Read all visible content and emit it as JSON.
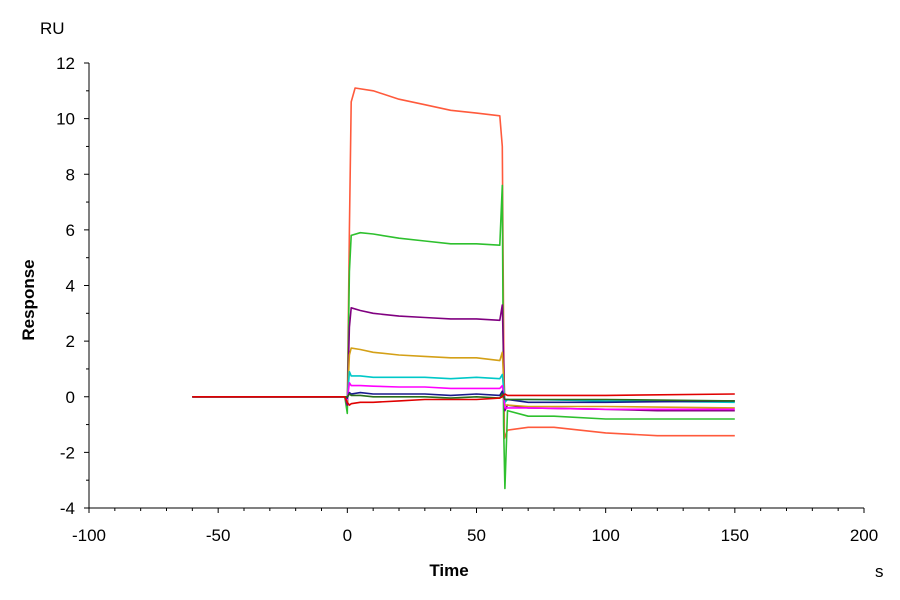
{
  "chart_data": {
    "type": "line",
    "xlabel": "Time",
    "ylabel": "Response",
    "x_unit": "s",
    "y_unit": "RU",
    "xlim": [
      -100,
      200
    ],
    "ylim": [
      -4,
      12
    ],
    "x_ticks": [
      -100,
      -50,
      0,
      50,
      100,
      150,
      200
    ],
    "y_ticks": [
      -4,
      -2,
      0,
      2,
      4,
      6,
      8,
      10,
      12
    ],
    "grid": false,
    "legend": "none",
    "series": [
      {
        "color": "#ff5a3c",
        "x": [
          -60,
          -20,
          -1,
          0,
          0.8,
          1.5,
          3,
          10,
          20,
          30,
          40,
          50,
          59,
          60,
          60.8,
          62,
          70,
          80,
          100,
          120,
          150
        ],
        "y": [
          0,
          0,
          0,
          -0.4,
          6,
          10.6,
          11.1,
          11.0,
          10.7,
          10.5,
          10.3,
          10.2,
          10.1,
          9,
          -1.5,
          -1.2,
          -1.1,
          -1.1,
          -1.3,
          -1.4,
          -1.4
        ]
      },
      {
        "color": "#2ec02e",
        "x": [
          -60,
          -20,
          -1,
          0,
          0.8,
          1.5,
          5,
          10,
          20,
          30,
          40,
          50,
          59,
          60,
          60.5,
          61,
          62,
          70,
          80,
          100,
          120,
          150
        ],
        "y": [
          0,
          0,
          0,
          -0.6,
          4.5,
          5.8,
          5.9,
          5.85,
          5.7,
          5.6,
          5.5,
          5.5,
          5.45,
          7.6,
          -1.0,
          -3.3,
          -0.5,
          -0.7,
          -0.7,
          -0.8,
          -0.8,
          -0.8
        ]
      },
      {
        "color": "#800080",
        "x": [
          -60,
          -20,
          -1,
          0,
          0.8,
          1.5,
          5,
          10,
          20,
          30,
          40,
          50,
          59,
          60,
          61,
          62,
          70,
          100,
          120,
          150
        ],
        "y": [
          0,
          0,
          0,
          -0.3,
          2.5,
          3.2,
          3.1,
          3.0,
          2.9,
          2.85,
          2.8,
          2.8,
          2.75,
          3.3,
          -0.5,
          -0.3,
          -0.4,
          -0.45,
          -0.5,
          -0.5
        ]
      },
      {
        "color": "#d4a017",
        "x": [
          -60,
          -20,
          -1,
          0,
          0.8,
          1.5,
          5,
          10,
          20,
          30,
          40,
          50,
          59,
          60,
          61,
          62,
          70,
          100,
          150
        ],
        "y": [
          0,
          0,
          0,
          -0.2,
          1.5,
          1.75,
          1.7,
          1.6,
          1.5,
          1.45,
          1.4,
          1.4,
          1.3,
          1.6,
          -0.3,
          -0.3,
          -0.35,
          -0.35,
          -0.4
        ]
      },
      {
        "color": "#00c8c8",
        "x": [
          -60,
          -20,
          -1,
          0,
          0.8,
          1.5,
          5,
          10,
          20,
          30,
          40,
          50,
          59,
          60,
          61,
          62,
          70,
          100,
          150
        ],
        "y": [
          0,
          0,
          0,
          -0.1,
          0.9,
          0.75,
          0.75,
          0.7,
          0.7,
          0.7,
          0.65,
          0.7,
          0.65,
          0.8,
          -0.2,
          -0.1,
          -0.1,
          -0.15,
          -0.2
        ]
      },
      {
        "color": "#ff00ff",
        "x": [
          -60,
          -20,
          -1,
          0,
          0.8,
          1.5,
          5,
          10,
          20,
          30,
          40,
          50,
          59,
          60,
          61,
          62,
          70,
          100,
          150
        ],
        "y": [
          0,
          0,
          0,
          -0.1,
          0.5,
          0.4,
          0.4,
          0.38,
          0.35,
          0.35,
          0.3,
          0.3,
          0.3,
          0.4,
          -0.4,
          -0.4,
          -0.4,
          -0.45,
          -0.45
        ]
      },
      {
        "color": "#1a1a8c",
        "x": [
          -60,
          -20,
          -1,
          0,
          0.8,
          1.5,
          5,
          10,
          20,
          30,
          40,
          50,
          59,
          60,
          61,
          62,
          70,
          100,
          150
        ],
        "y": [
          0,
          0,
          0,
          -0.05,
          0.15,
          0.1,
          0.15,
          0.1,
          0.1,
          0.1,
          0.05,
          0.1,
          0.05,
          0.2,
          -0.1,
          -0.1,
          -0.2,
          -0.2,
          -0.15
        ]
      },
      {
        "color": "#2a6e1a",
        "x": [
          -60,
          -20,
          -1,
          0,
          0.8,
          1.5,
          5,
          10,
          20,
          30,
          40,
          50,
          59,
          60,
          61,
          62,
          70,
          100,
          150
        ],
        "y": [
          0,
          0,
          0,
          0,
          0.1,
          0.05,
          0.05,
          0.0,
          0.0,
          0.0,
          -0.05,
          0.0,
          -0.05,
          0.1,
          -0.1,
          -0.1,
          -0.1,
          -0.1,
          -0.15
        ]
      },
      {
        "color": "#e00000",
        "x": [
          -60,
          -20,
          -1,
          0,
          0.8,
          1.5,
          5,
          10,
          20,
          30,
          40,
          50,
          59,
          60,
          61,
          62,
          70,
          100,
          150
        ],
        "y": [
          0,
          0,
          0,
          -0.2,
          -0.3,
          -0.25,
          -0.2,
          -0.2,
          -0.15,
          -0.1,
          -0.1,
          -0.1,
          -0.05,
          0,
          0.1,
          0.05,
          0.05,
          0.05,
          0.1
        ]
      }
    ]
  }
}
